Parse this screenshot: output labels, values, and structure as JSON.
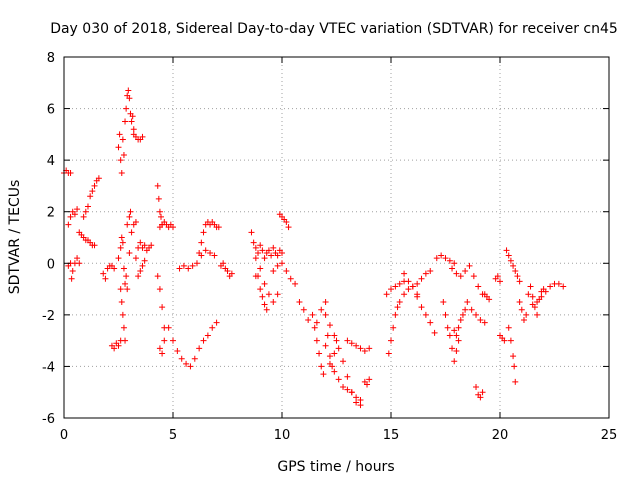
{
  "chart_data": {
    "type": "scatter",
    "title": "Day 030 of 2018, Sidereal Day-to-day VTEC variation (SDTVAR) for receiver cn45",
    "xlabel": "GPS time / hours",
    "ylabel": "SDTVAR / TECUs",
    "xlim": [
      0,
      25
    ],
    "ylim": [
      -6,
      8
    ],
    "xticks": [
      "0",
      "5",
      "10",
      "15",
      "20",
      "25"
    ],
    "yticks": [
      "-6",
      "-4",
      "-2",
      "0",
      "2",
      "4",
      "6",
      "8"
    ],
    "grid": true,
    "marker": "+",
    "color": "#ff0000",
    "series": [
      {
        "name": "s1",
        "x": [
          0.0,
          0.1,
          0.2,
          0.3
        ],
        "y": [
          3.5,
          3.6,
          3.5,
          3.5
        ]
      },
      {
        "name": "s2",
        "x": [
          0.2,
          0.3,
          0.4,
          0.5,
          0.6
        ],
        "y": [
          1.5,
          1.8,
          2.0,
          1.9,
          2.1
        ]
      },
      {
        "name": "s3",
        "x": [
          0.2,
          0.3,
          0.35,
          0.4,
          0.5,
          0.6,
          0.7
        ],
        "y": [
          -0.1,
          0.0,
          -0.6,
          -0.3,
          0.0,
          0.2,
          0.0
        ]
      },
      {
        "name": "s4",
        "x": [
          0.7,
          0.8,
          0.9,
          1.0,
          1.1,
          1.2,
          1.3,
          1.4
        ],
        "y": [
          1.2,
          1.1,
          1.0,
          0.9,
          0.9,
          0.8,
          0.7,
          0.7
        ]
      },
      {
        "name": "s5",
        "x": [
          0.9,
          1.0,
          1.1,
          1.2,
          1.3,
          1.4,
          1.5,
          1.6
        ],
        "y": [
          1.8,
          2.0,
          2.2,
          2.6,
          2.8,
          3.0,
          3.2,
          3.3
        ]
      },
      {
        "name": "s6",
        "x": [
          1.8,
          1.9,
          2.0,
          2.1,
          2.2,
          2.3
        ],
        "y": [
          -0.4,
          -0.6,
          -0.2,
          -0.1,
          -0.1,
          -0.2
        ]
      },
      {
        "name": "s7",
        "x": [
          2.2,
          2.3,
          2.4,
          2.5,
          2.6
        ],
        "y": [
          -3.2,
          -3.3,
          -3.1,
          -3.2,
          -3.0
        ]
      },
      {
        "name": "s8",
        "x": [
          2.5,
          2.55,
          2.6,
          2.65,
          2.7,
          2.75,
          2.8,
          2.85,
          2.9,
          2.95,
          3.0,
          3.05,
          3.1,
          3.15,
          3.2
        ],
        "y": [
          4.5,
          5.0,
          4.0,
          3.5,
          4.8,
          4.2,
          5.5,
          6.0,
          6.5,
          6.7,
          6.4,
          5.8,
          5.5,
          5.7,
          5.2
        ]
      },
      {
        "name": "s9",
        "x": [
          2.5,
          2.6,
          2.65,
          2.7,
          2.75,
          2.8,
          2.85,
          2.9,
          3.0
        ],
        "y": [
          0.2,
          0.6,
          1.0,
          0.8,
          -0.2,
          -0.8,
          -0.5,
          -1.0,
          0.4
        ]
      },
      {
        "name": "s10",
        "x": [
          2.6,
          2.65,
          2.7,
          2.75,
          2.8
        ],
        "y": [
          -1.0,
          -1.5,
          -2.0,
          -2.5,
          -3.0
        ]
      },
      {
        "name": "s11",
        "x": [
          2.9,
          3.0,
          3.05,
          3.1,
          3.2,
          3.3
        ],
        "y": [
          1.5,
          1.8,
          2.0,
          1.2,
          1.5,
          1.6
        ]
      },
      {
        "name": "s12",
        "x": [
          3.2,
          3.3,
          3.4,
          3.5,
          3.6
        ],
        "y": [
          5.0,
          4.9,
          4.8,
          4.8,
          4.9
        ]
      },
      {
        "name": "s13",
        "x": [
          3.3,
          3.4,
          3.5,
          3.6,
          3.7,
          3.8,
          3.9,
          4.0
        ],
        "y": [
          0.2,
          0.6,
          0.8,
          0.6,
          0.7,
          0.5,
          0.6,
          0.7
        ]
      },
      {
        "name": "s14",
        "x": [
          3.4,
          3.5,
          3.6,
          3.7
        ],
        "y": [
          -0.5,
          -0.3,
          -0.1,
          0.1
        ]
      },
      {
        "name": "s15",
        "x": [
          4.3,
          4.35,
          4.4,
          4.45,
          4.5
        ],
        "y": [
          3.0,
          2.5,
          2.0,
          1.8,
          1.5
        ]
      },
      {
        "name": "s16",
        "x": [
          4.4,
          4.5,
          4.6,
          4.7,
          4.8,
          4.9,
          5.0
        ],
        "y": [
          1.4,
          1.5,
          1.6,
          1.5,
          1.4,
          1.5,
          1.4
        ]
      },
      {
        "name": "s17",
        "x": [
          4.3,
          4.4,
          4.5,
          4.6
        ],
        "y": [
          -0.5,
          -1.0,
          -1.7,
          -2.5
        ]
      },
      {
        "name": "s18",
        "x": [
          4.4,
          4.5,
          4.6
        ],
        "y": [
          -3.3,
          -3.5,
          -3.0
        ]
      },
      {
        "name": "s19",
        "x": [
          4.8,
          5.0,
          5.2,
          5.4,
          5.6,
          5.8,
          6.0,
          6.2,
          6.4,
          6.6,
          6.8,
          7.0
        ],
        "y": [
          -2.5,
          -3.0,
          -3.4,
          -3.7,
          -3.9,
          -4.0,
          -3.7,
          -3.3,
          -3.0,
          -2.8,
          -2.5,
          -2.3
        ]
      },
      {
        "name": "s20",
        "x": [
          5.3,
          5.5,
          5.7,
          5.9,
          6.1,
          6.3,
          6.5,
          6.7,
          6.9
        ],
        "y": [
          -0.2,
          -0.1,
          -0.2,
          -0.1,
          0.0,
          0.3,
          0.5,
          0.4,
          0.3
        ]
      },
      {
        "name": "s21",
        "x": [
          6.2,
          6.3,
          6.4,
          6.5,
          6.6,
          6.7,
          6.8,
          6.9,
          7.0,
          7.1
        ],
        "y": [
          0.4,
          0.8,
          1.2,
          1.5,
          1.6,
          1.5,
          1.6,
          1.5,
          1.4,
          1.4
        ]
      },
      {
        "name": "s22",
        "x": [
          7.2,
          7.3,
          7.4,
          7.5,
          7.6,
          7.7
        ],
        "y": [
          -0.1,
          0.0,
          -0.2,
          -0.3,
          -0.5,
          -0.4
        ]
      },
      {
        "name": "s23",
        "x": [
          8.6,
          8.7,
          8.8,
          8.9,
          9.0,
          9.1,
          9.2,
          9.3
        ],
        "y": [
          1.2,
          0.8,
          0.2,
          -0.5,
          -1.0,
          -1.3,
          -1.6,
          -1.8
        ]
      },
      {
        "name": "s24",
        "x": [
          8.8,
          8.9,
          9.0,
          9.1,
          9.2,
          9.3,
          9.4,
          9.5,
          9.6,
          9.7,
          9.8,
          9.9,
          10.0
        ],
        "y": [
          0.6,
          0.4,
          0.7,
          0.5,
          0.2,
          0.4,
          0.5,
          0.3,
          0.6,
          0.4,
          0.3,
          0.5,
          0.4
        ]
      },
      {
        "name": "s25",
        "x": [
          8.8,
          9.0,
          9.2,
          9.4,
          9.6,
          9.8
        ],
        "y": [
          -0.5,
          -0.2,
          -0.8,
          -1.2,
          -1.5,
          -1.2
        ]
      },
      {
        "name": "s26",
        "x": [
          9.9,
          10.0,
          10.1,
          10.2,
          10.3
        ],
        "y": [
          1.9,
          1.8,
          1.7,
          1.6,
          1.4
        ]
      },
      {
        "name": "s27",
        "x": [
          9.6,
          9.8,
          10.0,
          10.2,
          10.4,
          10.6
        ],
        "y": [
          -0.3,
          -0.1,
          0.0,
          -0.3,
          -0.6,
          -0.8
        ]
      },
      {
        "name": "s28",
        "x": [
          10.8,
          11.0,
          11.2,
          11.4,
          11.6,
          11.8,
          12.0
        ],
        "y": [
          -1.5,
          -1.8,
          -2.2,
          -2.0,
          -2.3,
          -1.8,
          -1.5
        ]
      },
      {
        "name": "s29",
        "x": [
          11.5,
          11.6,
          11.7,
          11.8,
          11.9,
          12.0,
          12.1,
          12.2,
          12.3,
          12.4,
          12.5
        ],
        "y": [
          -2.5,
          -3.0,
          -3.5,
          -4.0,
          -4.3,
          -3.2,
          -2.8,
          -3.6,
          -4.0,
          -3.5,
          -3.0
        ]
      },
      {
        "name": "s30",
        "x": [
          12.0,
          12.2,
          12.4,
          12.6,
          12.8,
          13.0,
          13.2,
          13.4,
          13.6
        ],
        "y": [
          -2.0,
          -2.4,
          -2.8,
          -3.3,
          -3.8,
          -4.4,
          -5.0,
          -5.4,
          -5.5
        ]
      },
      {
        "name": "s31",
        "x": [
          12.2,
          12.4,
          12.6,
          12.8,
          13.0,
          13.2,
          13.4,
          13.6
        ],
        "y": [
          -3.9,
          -4.2,
          -4.5,
          -4.8,
          -4.9,
          -5.0,
          -5.2,
          -5.3
        ]
      },
      {
        "name": "s32",
        "x": [
          13.0,
          13.2,
          13.4,
          13.6,
          13.8,
          14.0
        ],
        "y": [
          -3.0,
          -3.1,
          -3.2,
          -3.3,
          -3.4,
          -3.3
        ]
      },
      {
        "name": "s33",
        "x": [
          13.8,
          13.9,
          14.0
        ],
        "y": [
          -4.6,
          -4.7,
          -4.5
        ]
      },
      {
        "name": "s34",
        "x": [
          14.8,
          15.0,
          15.2,
          15.4,
          15.6
        ],
        "y": [
          -1.2,
          -1.0,
          -0.9,
          -0.8,
          -0.7
        ]
      },
      {
        "name": "s35",
        "x": [
          14.9,
          15.0,
          15.1,
          15.2,
          15.3,
          15.4
        ],
        "y": [
          -3.5,
          -3.0,
          -2.5,
          -2.0,
          -1.7,
          -1.5
        ]
      },
      {
        "name": "s36",
        "x": [
          15.6,
          15.8,
          16.0,
          16.2,
          16.4,
          16.6,
          16.8
        ],
        "y": [
          -1.2,
          -1.0,
          -0.9,
          -0.8,
          -0.6,
          -0.4,
          -0.3
        ]
      },
      {
        "name": "s37",
        "x": [
          15.6,
          15.8,
          16.0,
          16.2
        ],
        "y": [
          -0.4,
          -0.7,
          -0.9,
          -1.2
        ]
      },
      {
        "name": "s38",
        "x": [
          16.2,
          16.4,
          16.6,
          16.8,
          17.0
        ],
        "y": [
          -1.3,
          -1.7,
          -2.0,
          -2.3,
          -2.7
        ]
      },
      {
        "name": "s39",
        "x": [
          17.1,
          17.3,
          17.5,
          17.7,
          17.9
        ],
        "y": [
          0.2,
          0.3,
          0.2,
          0.1,
          0.0
        ]
      },
      {
        "name": "s40",
        "x": [
          17.4,
          17.5,
          17.6,
          17.7,
          17.8,
          17.9,
          18.0,
          18.1
        ],
        "y": [
          -1.5,
          -2.0,
          -2.5,
          -2.8,
          -3.3,
          -3.8,
          -3.4,
          -3.0
        ]
      },
      {
        "name": "s41",
        "x": [
          17.9,
          18.0,
          18.1,
          18.2,
          18.3,
          18.4
        ],
        "y": [
          -2.6,
          -2.8,
          -2.5,
          -2.2,
          -2.0,
          -1.8
        ]
      },
      {
        "name": "s42",
        "x": [
          17.8,
          18.0,
          18.2,
          18.4,
          18.6,
          18.8,
          19.0,
          19.2
        ],
        "y": [
          -0.2,
          -0.4,
          -0.5,
          -0.3,
          -0.1,
          -0.5,
          -0.9,
          -1.2
        ]
      },
      {
        "name": "s43",
        "x": [
          18.5,
          18.7,
          18.9,
          19.1,
          19.3
        ],
        "y": [
          -1.5,
          -1.8,
          -2.0,
          -2.2,
          -2.3
        ]
      },
      {
        "name": "s44",
        "x": [
          18.9,
          19.0,
          19.1,
          19.2
        ],
        "y": [
          -4.8,
          -5.1,
          -5.2,
          -5.0
        ]
      },
      {
        "name": "s45",
        "x": [
          19.3,
          19.4,
          19.5
        ],
        "y": [
          -1.2,
          -1.3,
          -1.4
        ]
      },
      {
        "name": "s46",
        "x": [
          19.8,
          19.9,
          20.0
        ],
        "y": [
          -0.6,
          -0.5,
          -0.7
        ]
      },
      {
        "name": "s47",
        "x": [
          20.0,
          20.1,
          20.2
        ],
        "y": [
          -2.8,
          -2.9,
          -3.0
        ]
      },
      {
        "name": "s48",
        "x": [
          20.3,
          20.4,
          20.5,
          20.6,
          20.7,
          20.8,
          20.9
        ],
        "y": [
          0.5,
          0.3,
          0.1,
          -0.1,
          -0.3,
          -0.5,
          -0.7
        ]
      },
      {
        "name": "s49",
        "x": [
          20.4,
          20.5,
          20.6,
          20.65,
          20.7
        ],
        "y": [
          -2.5,
          -3.0,
          -3.6,
          -4.0,
          -4.6
        ]
      },
      {
        "name": "s50",
        "x": [
          20.9,
          21.0,
          21.1,
          21.2,
          21.3,
          21.4,
          21.5,
          21.6,
          21.7,
          21.8,
          21.9,
          22.0
        ],
        "y": [
          -1.5,
          -1.8,
          -2.2,
          -2.0,
          -1.2,
          -0.9,
          -1.3,
          -1.7,
          -2.0,
          -1.4,
          -1.1,
          -1.0
        ]
      },
      {
        "name": "s51",
        "x": [
          21.5,
          21.7,
          21.9,
          22.1,
          22.3,
          22.5,
          22.7,
          22.9
        ],
        "y": [
          -1.6,
          -1.5,
          -1.3,
          -1.1,
          -0.9,
          -0.8,
          -0.8,
          -0.9
        ]
      }
    ]
  }
}
